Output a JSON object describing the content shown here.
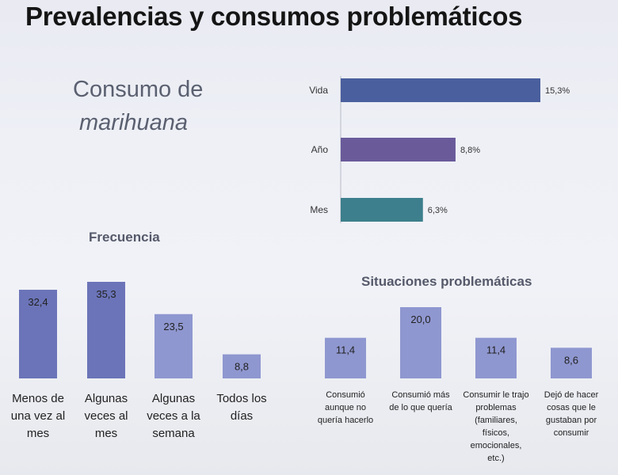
{
  "page": {
    "title": "Prevalencias y consumos problemáticos",
    "subtitle_line1": "Consumo de",
    "subtitle_line2": "marihuana"
  },
  "colors": {
    "vida": "#4a5f9e",
    "anio": "#6a5a9a",
    "mes": "#3d7f8c",
    "freq_dark": "#6b74b8",
    "freq_light": "#8f97d0",
    "sit": "#8f97d0",
    "value_text": "#222222"
  },
  "chart_data": [
    {
      "type": "bar",
      "orientation": "horizontal",
      "title": "",
      "categories": [
        "Vida",
        "Año",
        "Mes"
      ],
      "values": [
        15.3,
        8.8,
        6.3
      ],
      "value_labels": [
        "15,3%",
        "8,8%",
        "6,3%"
      ],
      "xlim": [
        0,
        15.3
      ]
    },
    {
      "type": "bar",
      "title": "Frecuencia",
      "categories": [
        [
          "Menos de",
          "una vez al",
          "mes"
        ],
        [
          "Algunas",
          "veces al",
          "mes"
        ],
        [
          "Algunas",
          "veces a la",
          "semana"
        ],
        [
          "Todos los",
          "días"
        ]
      ],
      "values": [
        32.4,
        35.3,
        23.5,
        8.8
      ],
      "value_labels": [
        "32,4",
        "35,3",
        "23,5",
        "8,8"
      ],
      "ylim": [
        0,
        35.3
      ]
    },
    {
      "type": "bar",
      "title": "Situaciones problemáticas",
      "categories": [
        [
          "Consumió",
          "aunque no",
          "quería hacerlo"
        ],
        [
          "Consumió más",
          "de lo que quería"
        ],
        [
          "Consumir le trajo",
          "problemas",
          "(familiares,",
          "físicos,",
          "emocionales,",
          "etc.)"
        ],
        [
          "Dejó de hacer",
          "cosas que le",
          "gustaban por",
          "consumir"
        ]
      ],
      "values": [
        11.4,
        20.0,
        11.4,
        8.6
      ],
      "value_labels": [
        "11,4",
        "20,0",
        "11,4",
        "8,6"
      ],
      "ylim": [
        0,
        20.0
      ]
    }
  ]
}
